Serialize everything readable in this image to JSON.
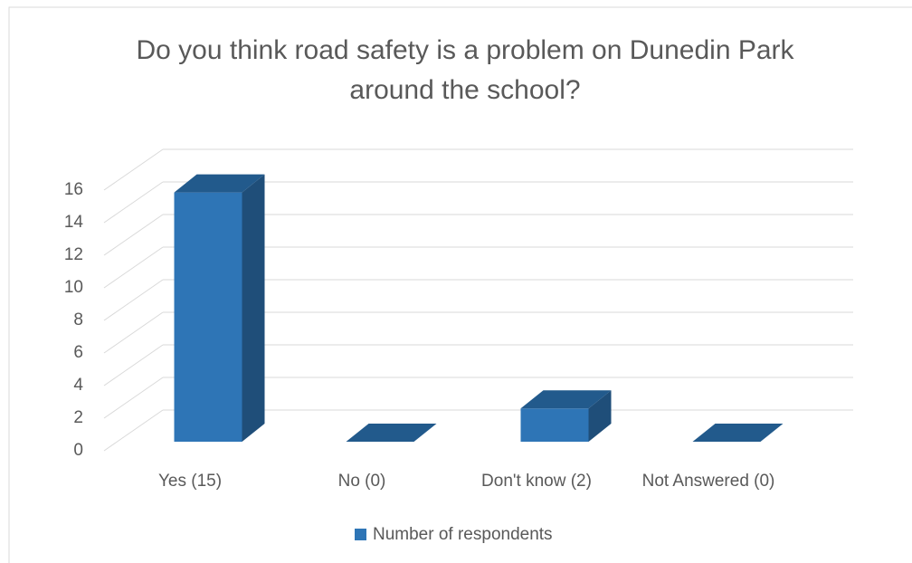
{
  "chart_data": {
    "type": "bar3d",
    "title": "Do you think road safety is a problem on Dunedin Park around the school?",
    "categories": [
      "Yes (15)",
      "No (0)",
      "Don't know (2)",
      "Not Answered (0)"
    ],
    "series": [
      {
        "name": "Number of respondents",
        "color": "#2e75b6",
        "values": [
          15,
          0,
          2,
          0
        ]
      }
    ],
    "ylim": [
      0,
      16
    ],
    "yticks": [
      0,
      2,
      4,
      6,
      8,
      10,
      12,
      14,
      16
    ],
    "grid": true,
    "legend": "bottom"
  }
}
